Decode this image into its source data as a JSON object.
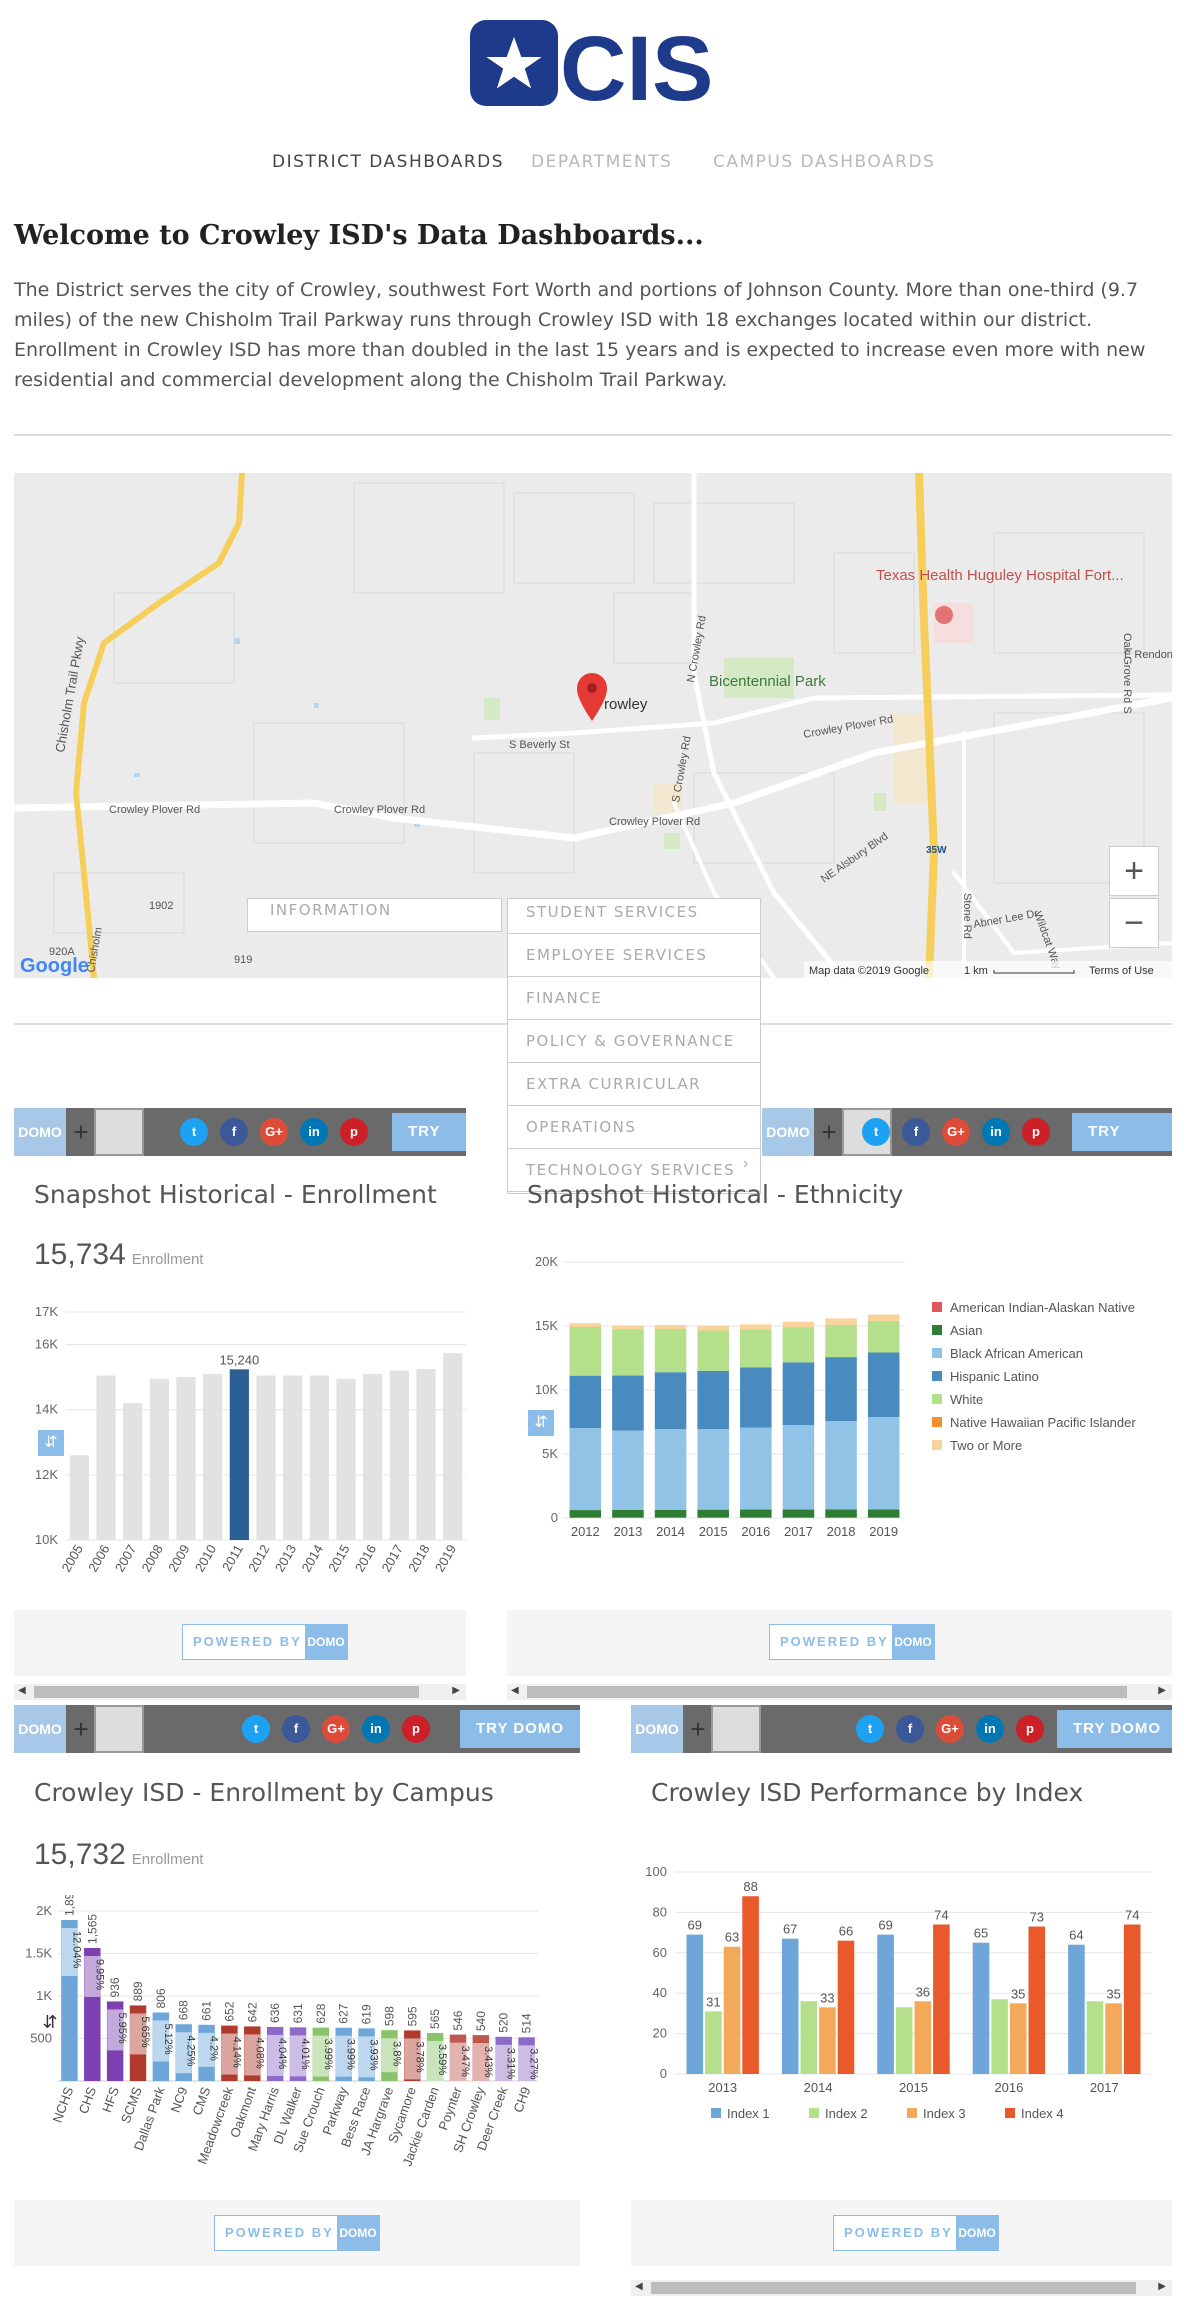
{
  "header": {
    "logo_text": "CISD",
    "nav": [
      {
        "label": "DISTRICT DASHBOARDS"
      },
      {
        "label": "DEPARTMENTS"
      },
      {
        "label": "CAMPUS DASHBOARDS"
      }
    ]
  },
  "welcome": {
    "title": "Welcome to Crowley ISD's Data Dashboards...",
    "intro": "The District serves the city of Crowley, southwest Fort Worth and portions of Johnson County. More than one-third (9.7 miles) of the new Chisholm Trail Parkway runs through Crowley ISD with 18 exchanges located within our district. Enrollment in Crowley ISD has more than doubled in the last 15 years and is expected to increase even more with new residential and commercial development along the Chisholm Trail Parkway."
  },
  "map": {
    "labels": {
      "chisholm": "Chisholm Trail Pkwy",
      "crowley_plover_w": "Crowley Plover Rd",
      "crowley_plover_mid": "Crowley Plover Rd",
      "crowley_plover_e": "Crowley Plover Rd",
      "crowley_plover_ne": "Crowley Plover Rd",
      "beverly": "S Beverly St",
      "city": "rowley",
      "park": "Bicentennial Park",
      "hospital": "Texas Health Huguley Hospital Fort...",
      "n_crowley": "N Crowley Rd",
      "s_crowley": "S Crowley Rd",
      "rendon": "E Rendon C",
      "oak_grove": "Oak Grove Rd S",
      "ne_alsbury": "NE Alsbury Blvd",
      "stone": "Stone Rd",
      "wildcat": "Wildcat Way",
      "abner": "Abner Lee Dr",
      "i35w": "35W",
      "r1902": "1902",
      "r920a": "920A",
      "r919": "919",
      "chisholm_s": "Chisholm",
      "google": "Google",
      "map_data": "Map data ©2019 Google",
      "scale": "1 km",
      "terms": "Terms of Use"
    },
    "zoom_in": "+",
    "zoom_out": "−"
  },
  "info_tab": "INFORMATION",
  "dropdown": [
    {
      "label": "STUDENT SERVICES"
    },
    {
      "label": "EMPLOYEE SERVICES"
    },
    {
      "label": "FINANCE"
    },
    {
      "label": "POLICY & GOVERNANCE"
    },
    {
      "label": "EXTRA CURRICULAR"
    },
    {
      "label": "OPERATIONS"
    },
    {
      "label": "TECHNOLOGY SERVICES"
    }
  ],
  "widget": {
    "domo_label": "DOMO",
    "try_label": "TRY DOMO",
    "powered_label": "POWERED BY",
    "social": {
      "twitter": "t",
      "facebook": "f",
      "google": "G+",
      "linkedin": "in",
      "pinterest": "p"
    },
    "social_colors": {
      "twitter": "#1da1f2",
      "facebook": "#3b5998",
      "google": "#dd4b39",
      "linkedin": "#0077b5",
      "pinterest": "#cb2027"
    }
  },
  "cards": {
    "enrollment": {
      "title": "Snapshot Historical - Enrollment",
      "value": "15,734",
      "unit": "Enrollment"
    },
    "ethnicity": {
      "title": "Snapshot Historical - Ethnicity"
    },
    "campus": {
      "title": "Crowley ISD - Enrollment by Campus",
      "value": "15,732",
      "unit": "Enrollment"
    },
    "performance": {
      "title": "Crowley ISD Performance by Index"
    }
  },
  "chart_data": [
    {
      "type": "bar",
      "title": "Snapshot Historical - Enrollment",
      "categories": [
        "2005",
        "2006",
        "2007",
        "2008",
        "2009",
        "2010",
        "2011",
        "2012",
        "2013",
        "2014",
        "2015",
        "2016",
        "2017",
        "2018",
        "2019"
      ],
      "values": [
        12600,
        15050,
        14200,
        14950,
        15000,
        15100,
        15240,
        15050,
        15050,
        15050,
        14950,
        15100,
        15200,
        15250,
        15734
      ],
      "highlight": "2011",
      "highlight_label": "15,240",
      "yticks": [
        "10K",
        "12K",
        "14K",
        "16K",
        "17K"
      ],
      "ylim": [
        10000,
        17000
      ],
      "colors": {
        "bar": "#e2e2e2",
        "highlight": "#2b5f93"
      }
    },
    {
      "type": "bar",
      "title": "Snapshot Historical - Ethnicity",
      "stacked": true,
      "categories": [
        "2012",
        "2013",
        "2014",
        "2015",
        "2016",
        "2017",
        "2018",
        "2019"
      ],
      "yticks": [
        "0",
        "5K",
        "10K",
        "15K",
        "20K"
      ],
      "ylim": [
        0,
        20000
      ],
      "legend_position": "right",
      "series": [
        {
          "name": "American Indian-Alaskan Native",
          "color": "#e15759",
          "values": [
            60,
            60,
            60,
            60,
            60,
            60,
            60,
            60
          ]
        },
        {
          "name": "Asian",
          "color": "#2e7d32",
          "values": [
            560,
            570,
            580,
            590,
            600,
            600,
            610,
            620
          ]
        },
        {
          "name": "Black African American",
          "color": "#91c3e6",
          "values": [
            6400,
            6200,
            6300,
            6300,
            6400,
            6600,
            6900,
            7200
          ]
        },
        {
          "name": "Hispanic Latino",
          "color": "#4a8bbf",
          "values": [
            4100,
            4300,
            4450,
            4550,
            4700,
            4900,
            5000,
            5050
          ]
        },
        {
          "name": "White",
          "color": "#b4e08c",
          "values": [
            3800,
            3600,
            3350,
            3150,
            2950,
            2700,
            2500,
            2400
          ]
        },
        {
          "name": "Native Hawaiian Pacific Islander",
          "color": "#f28e2b",
          "values": [
            20,
            20,
            20,
            20,
            20,
            20,
            20,
            20
          ]
        },
        {
          "name": "Two or More",
          "color": "#f8d39b",
          "values": [
            280,
            300,
            320,
            360,
            400,
            450,
            500,
            550
          ]
        }
      ]
    },
    {
      "type": "bar",
      "title": "Crowley ISD - Enrollment by Campus",
      "categories": [
        "NCHS",
        "CHS",
        "HFS",
        "SCMS",
        "Dallas Park",
        "NC9",
        "CMS",
        "Meadowcreek",
        "Oakmont",
        "Mary Harris",
        "DL Walker",
        "Sue Crouch",
        "Parkway",
        "Bess Race",
        "JA Hargrave",
        "Sycamore",
        "Jackie Carden",
        "Poynter",
        "SH Crowley",
        "Deer Creek",
        "CH9"
      ],
      "values": [
        1894,
        1565,
        936,
        889,
        806,
        668,
        661,
        652,
        642,
        636,
        631,
        628,
        627,
        619,
        598,
        595,
        565,
        546,
        540,
        520,
        514
      ],
      "percents": [
        "12.04%",
        "9.95%",
        "5.95%",
        "5.65%",
        "5.12%",
        "4.25%",
        "4.2%",
        "4.14%",
        "4.08%",
        "4.04%",
        "4.01%",
        "3.99%",
        "3.99%",
        "3.93%",
        "3.8%",
        "3.78%",
        "3.59%",
        "3.47%",
        "3.43%",
        "3.31%",
        "3.27%"
      ],
      "value_labels": [
        "1,894",
        "1,565",
        "936",
        "889",
        "806",
        "668",
        "661",
        "652",
        "642",
        "636",
        "631",
        "628",
        "627",
        "619",
        "598",
        "595",
        "565",
        "546",
        "540",
        "520",
        "514"
      ],
      "colors": [
        "#6ea6d9",
        "#7b3fb0",
        "#7b3fb0",
        "#b03a2e",
        "#6ea6d9",
        "#6ea6d9",
        "#6ea6d9",
        "#b03a2e",
        "#b03a2e",
        "#8e6ac8",
        "#8e6ac8",
        "#8ac46a",
        "#6ea6d9",
        "#6ea6d9",
        "#8ac46a",
        "#b03a2e",
        "#8ac46a",
        "#c0574f",
        "#c0574f",
        "#8e6ac8",
        "#8e6ac8"
      ],
      "yticks": [
        "500",
        "1K",
        "1.5K",
        "2K"
      ],
      "ylim": [
        0,
        2000
      ]
    },
    {
      "type": "bar",
      "title": "Crowley ISD Performance by Index",
      "categories": [
        "2013",
        "2014",
        "2015",
        "2016",
        "2017"
      ],
      "yticks": [
        "0",
        "20",
        "40",
        "60",
        "80",
        "100"
      ],
      "ylim": [
        0,
        100
      ],
      "legend_position": "bottom",
      "series": [
        {
          "name": "Index 1",
          "color": "#6ea6d9",
          "values": [
            69,
            67,
            69,
            65,
            64
          ]
        },
        {
          "name": "Index 2",
          "color": "#b4e08c",
          "values": [
            31,
            36,
            33,
            37,
            36
          ]
        },
        {
          "name": "Index 3",
          "color": "#f4a95a",
          "values": [
            63,
            33,
            36,
            35,
            35
          ]
        },
        {
          "name": "Index 4",
          "color": "#e8592b",
          "values": [
            88,
            66,
            74,
            73,
            74
          ]
        }
      ],
      "value_labels": [
        [
          "69",
          "67",
          "69",
          "65",
          "64"
        ],
        [
          "31",
          "",
          "",
          "",
          ""
        ],
        [
          "63",
          "33",
          "36",
          "35",
          "35"
        ],
        [
          "88",
          "66",
          "74",
          "73",
          "74"
        ]
      ]
    }
  ]
}
